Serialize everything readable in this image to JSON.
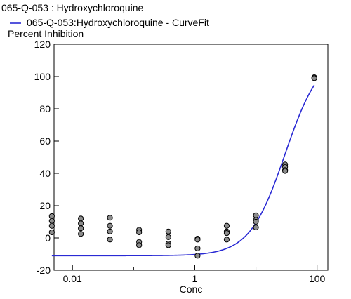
{
  "chart_data": {
    "type": "scatter",
    "title": "065-Q-053 : Hydroxychloroquine",
    "ylabel": "Percent Inhibition",
    "xlabel": "Conc",
    "x_scale": "log",
    "xlim": [
      0.005,
      150
    ],
    "ylim": [
      -20,
      120
    ],
    "x_ticks": [
      {
        "value": 0.01,
        "label": "0.01"
      },
      {
        "value": 1,
        "label": "1"
      },
      {
        "value": 100,
        "label": "100"
      }
    ],
    "x_minor_ticks": [
      0.1,
      10
    ],
    "y_ticks": [
      {
        "value": -20,
        "label": "-20"
      },
      {
        "value": 0,
        "label": "0"
      },
      {
        "value": 20,
        "label": "20"
      },
      {
        "value": 40,
        "label": "40"
      },
      {
        "value": 60,
        "label": "60"
      },
      {
        "value": 80,
        "label": "80"
      },
      {
        "value": 100,
        "label": "100"
      },
      {
        "value": 120,
        "label": "120"
      }
    ],
    "grid": false,
    "legend": {
      "placement": "top-left",
      "entries": [
        {
          "label": "065-Q-053:Hydroxychloroquine - CurveFit",
          "color": "#2a2ad4"
        }
      ]
    },
    "series": [
      {
        "type": "scatter",
        "color": "#8c8c8c",
        "points": [
          {
            "x": 0.0046,
            "y": 13.5
          },
          {
            "x": 0.0046,
            "y": 10.5
          },
          {
            "x": 0.0046,
            "y": 7.5
          },
          {
            "x": 0.0046,
            "y": 3.5
          },
          {
            "x": 0.0137,
            "y": 12
          },
          {
            "x": 0.0137,
            "y": 9
          },
          {
            "x": 0.0137,
            "y": 6
          },
          {
            "x": 0.0137,
            "y": 2.5
          },
          {
            "x": 0.041,
            "y": 12.5
          },
          {
            "x": 0.041,
            "y": 7.5
          },
          {
            "x": 0.041,
            "y": 4
          },
          {
            "x": 0.041,
            "y": -1
          },
          {
            "x": 0.123,
            "y": 5
          },
          {
            "x": 0.123,
            "y": 3.5
          },
          {
            "x": 0.123,
            "y": -2.5
          },
          {
            "x": 0.123,
            "y": -4.5
          },
          {
            "x": 0.37,
            "y": 4
          },
          {
            "x": 0.37,
            "y": 0.5
          },
          {
            "x": 0.37,
            "y": -3.5
          },
          {
            "x": 0.37,
            "y": -4.5
          },
          {
            "x": 1.11,
            "y": -0.5
          },
          {
            "x": 1.11,
            "y": -1
          },
          {
            "x": 1.11,
            "y": -6.5
          },
          {
            "x": 1.11,
            "y": -11
          },
          {
            "x": 3.33,
            "y": 7.5
          },
          {
            "x": 3.33,
            "y": 4
          },
          {
            "x": 3.33,
            "y": 3
          },
          {
            "x": 3.33,
            "y": -1
          },
          {
            "x": 10,
            "y": 14
          },
          {
            "x": 10,
            "y": 11
          },
          {
            "x": 10,
            "y": 10
          },
          {
            "x": 10,
            "y": 6.5
          },
          {
            "x": 30,
            "y": 45.5
          },
          {
            "x": 30,
            "y": 44
          },
          {
            "x": 30,
            "y": 42
          },
          {
            "x": 30,
            "y": 41.5
          },
          {
            "x": 90,
            "y": 99.5
          },
          {
            "x": 90,
            "y": 99
          }
        ]
      },
      {
        "type": "line",
        "name": "065-Q-053:Hydroxychloroquine - CurveFit",
        "color": "#2a2ad4",
        "fit": {
          "bottom": -11,
          "top": 115,
          "ec50": 30,
          "hill": 1.5
        },
        "x_range": [
          0.0046,
          90
        ]
      }
    ]
  }
}
